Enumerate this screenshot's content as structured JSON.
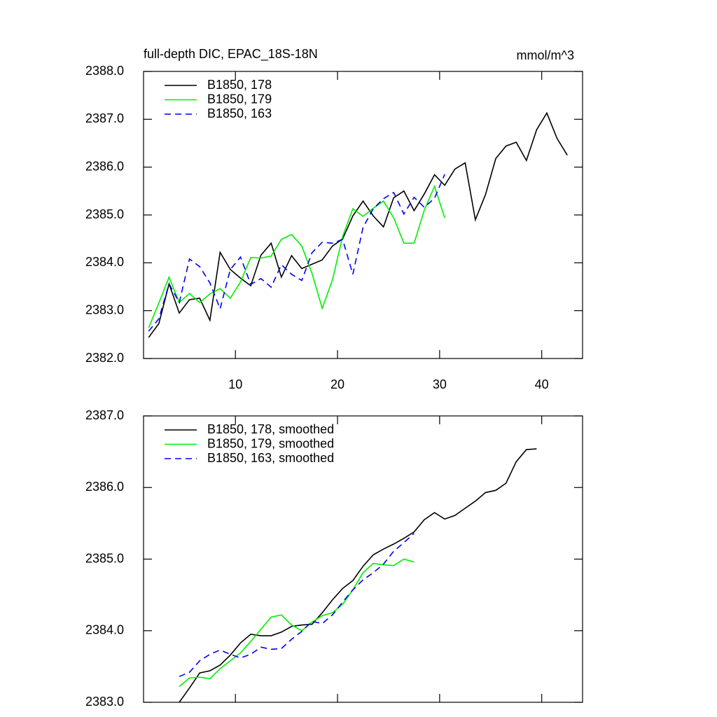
{
  "chart_data": [
    {
      "type": "line",
      "title": "full-depth DIC, EPAC_18S-18N",
      "units": "mmol/m^3",
      "xlim": [
        1,
        44
      ],
      "xticks": [
        10,
        20,
        30,
        40
      ],
      "ylim": [
        2382,
        2388
      ],
      "yticks": [
        {
          "value": 2382,
          "label": "2382.0"
        },
        {
          "value": 2383,
          "label": "2383.0"
        },
        {
          "value": 2384,
          "label": "2384.0"
        },
        {
          "value": 2385,
          "label": "2385.0"
        },
        {
          "value": 2386,
          "label": "2386.0"
        },
        {
          "value": 2387,
          "label": "2387.0"
        },
        {
          "value": 2388,
          "label": "2388.0"
        }
      ],
      "legend": "upper left",
      "series": [
        {
          "name": "B1850, 178",
          "color": "#000000",
          "dashed": false,
          "x": [
            1.5,
            2.5,
            3.5,
            4.5,
            5.5,
            6.5,
            7.5,
            8.5,
            9.5,
            10.5,
            11.5,
            12.5,
            13.5,
            14.5,
            15.5,
            16.5,
            17.5,
            18.5,
            19.5,
            20.5,
            21.5,
            22.5,
            23.5,
            24.5,
            25.5,
            26.5,
            27.5,
            28.5,
            29.5,
            30.5,
            31.5,
            32.5,
            33.5,
            34.5,
            35.5,
            36.5,
            37.5,
            38.5,
            39.5,
            40.5,
            41.5,
            42.5
          ],
          "values": [
            2382.44,
            2382.73,
            2383.56,
            2382.95,
            2383.23,
            2383.26,
            2382.8,
            2384.22,
            2383.86,
            2383.68,
            2383.52,
            2384.16,
            2384.41,
            2383.7,
            2384.15,
            2383.88,
            2383.97,
            2384.06,
            2384.35,
            2384.5,
            2384.98,
            2385.29,
            2384.98,
            2384.75,
            2385.36,
            2385.5,
            2385.09,
            2385.44,
            2385.84,
            2385.62,
            2385.96,
            2386.09,
            2384.9,
            2385.43,
            2386.18,
            2386.44,
            2386.52,
            2386.14,
            2386.78,
            2387.13,
            2386.6,
            2386.25
          ]
        },
        {
          "name": "B1850, 179",
          "color": "#00ee00",
          "dashed": false,
          "x": [
            1.5,
            2.5,
            3.5,
            4.5,
            5.5,
            6.5,
            7.5,
            8.5,
            9.5,
            10.5,
            11.5,
            12.5,
            13.5,
            14.5,
            15.5,
            16.5,
            17.5,
            18.5,
            19.5,
            20.5,
            21.5,
            22.5,
            23.5,
            24.5,
            25.5,
            26.5,
            27.5,
            28.5,
            29.5,
            30.5
          ],
          "values": [
            2382.64,
            2383.16,
            2383.7,
            2383.17,
            2383.36,
            2383.17,
            2383.35,
            2383.46,
            2383.26,
            2383.6,
            2384.11,
            2384.1,
            2384.14,
            2384.49,
            2384.59,
            2384.35,
            2383.78,
            2383.05,
            2383.64,
            2384.55,
            2385.13,
            2384.97,
            2385.14,
            2385.29,
            2384.94,
            2384.41,
            2384.41,
            2385.1,
            2385.6,
            2384.94
          ]
        },
        {
          "name": "B1850, 163",
          "color": "#0000ee",
          "dashed": true,
          "x": [
            1.5,
            2.5,
            3.5,
            4.5,
            5.5,
            6.5,
            7.5,
            8.5,
            9.5,
            10.5,
            11.5,
            12.5,
            13.5,
            14.5,
            15.5,
            16.5,
            17.5,
            18.5,
            19.5,
            20.5,
            21.5,
            22.5,
            23.5,
            24.5,
            25.5,
            26.5,
            27.5,
            28.5,
            29.5,
            30.5
          ],
          "values": [
            2382.57,
            2382.83,
            2383.56,
            2383.17,
            2384.08,
            2383.92,
            2383.58,
            2383.04,
            2383.86,
            2384.12,
            2383.55,
            2383.67,
            2383.49,
            2383.96,
            2383.76,
            2383.63,
            2384.21,
            2384.43,
            2384.41,
            2384.49,
            2383.76,
            2384.74,
            2385.13,
            2385.34,
            2385.47,
            2385.02,
            2385.37,
            2385.16,
            2385.35,
            2385.85
          ]
        }
      ]
    },
    {
      "type": "line",
      "xlim": [
        1,
        44
      ],
      "xticks": [
        10,
        20,
        30,
        40
      ],
      "ylim": [
        2383,
        2387
      ],
      "yticks": [
        {
          "value": 2383,
          "label": "2383.0"
        },
        {
          "value": 2384,
          "label": "2384.0"
        },
        {
          "value": 2385,
          "label": "2385.0"
        },
        {
          "value": 2386,
          "label": "2386.0"
        },
        {
          "value": 2387,
          "label": "2387.0"
        }
      ],
      "legend": "upper left",
      "series": [
        {
          "name": "B1850, 178, smoothed",
          "color": "#000000",
          "dashed": false,
          "x": [
            4.5,
            5.5,
            6.5,
            7.5,
            8.5,
            9.5,
            10.5,
            11.5,
            12.5,
            13.5,
            14.5,
            15.5,
            16.5,
            17.5,
            18.5,
            19.5,
            20.5,
            21.5,
            22.5,
            23.5,
            24.5,
            25.5,
            26.5,
            27.5,
            28.5,
            29.5,
            30.5,
            31.5,
            32.5,
            33.5,
            34.5,
            35.5,
            36.5,
            37.5,
            38.5,
            39.5
          ],
          "values": [
            2383.0,
            2383.2,
            2383.41,
            2383.44,
            2383.52,
            2383.66,
            2383.83,
            2383.95,
            2383.93,
            2383.93,
            2383.98,
            2384.06,
            2384.08,
            2384.09,
            2384.25,
            2384.43,
            2384.59,
            2384.7,
            2384.9,
            2385.06,
            2385.14,
            2385.21,
            2385.29,
            2385.38,
            2385.55,
            2385.65,
            2385.56,
            2385.61,
            2385.71,
            2385.81,
            2385.93,
            2385.96,
            2386.06,
            2386.36,
            2386.53,
            2386.54
          ]
        },
        {
          "name": "B1850, 179, smoothed",
          "color": "#00ee00",
          "dashed": false,
          "x": [
            4.5,
            5.5,
            6.5,
            7.5,
            8.5,
            9.5,
            10.5,
            11.5,
            12.5,
            13.5,
            14.5,
            15.5,
            16.5,
            17.5,
            18.5,
            19.5,
            20.5,
            21.5,
            22.5,
            23.5,
            24.5,
            25.5,
            26.5,
            27.5
          ],
          "values": [
            2383.22,
            2383.34,
            2383.35,
            2383.33,
            2383.47,
            2383.58,
            2383.69,
            2383.85,
            2384.02,
            2384.19,
            2384.22,
            2384.08,
            2384.0,
            2384.12,
            2384.21,
            2384.25,
            2384.37,
            2384.57,
            2384.81,
            2384.94,
            2384.92,
            2384.91,
            2385.0,
            2384.96
          ]
        },
        {
          "name": "B1850, 163, smoothed",
          "color": "#0000ee",
          "dashed": true,
          "x": [
            4.5,
            5.5,
            6.5,
            7.5,
            8.5,
            9.5,
            10.5,
            11.5,
            12.5,
            13.5,
            14.5,
            15.5,
            16.5,
            17.5,
            18.5,
            19.5,
            20.5,
            21.5,
            22.5,
            23.5,
            24.5,
            25.5,
            26.5,
            27.5
          ],
          "values": [
            2383.36,
            2383.42,
            2383.58,
            2383.67,
            2383.73,
            2383.67,
            2383.62,
            2383.67,
            2383.77,
            2383.74,
            2383.75,
            2383.88,
            2383.99,
            2384.13,
            2384.1,
            2384.22,
            2384.4,
            2384.57,
            2384.71,
            2384.81,
            2384.93,
            2385.11,
            2385.23,
            2385.36
          ]
        }
      ]
    }
  ]
}
